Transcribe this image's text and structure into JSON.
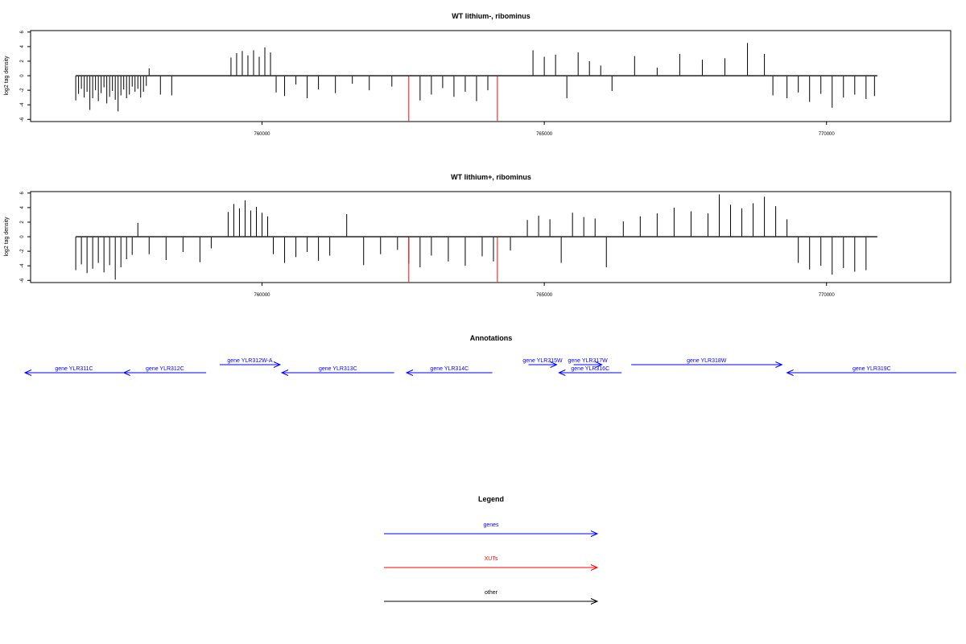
{
  "colors": {
    "signal": "#000000",
    "xut": "#ff0000",
    "gene": "#0000ff",
    "other": "#000000"
  },
  "chart_data": [
    {
      "type": "bar",
      "title": "WT lithium-, ribominus",
      "ylabel": "log2 tag density",
      "xlim": [
        755900,
        772200
      ],
      "ylim": [
        -6.3,
        6.2
      ],
      "xticks": [
        760000,
        765000,
        770000
      ],
      "xtick_labels": [
        "760000",
        "765000",
        "770000"
      ],
      "yticks": [
        -6,
        -4,
        -2,
        0,
        2,
        4,
        6
      ],
      "ytick_labels": [
        "-6",
        "-4",
        "-2",
        "0",
        "2",
        "4",
        "6"
      ],
      "data_range": [
        756700,
        770900
      ],
      "series": [
        {
          "color_key": "signal",
          "x": [
            756700,
            756750,
            756800,
            756850,
            756900,
            756950,
            757000,
            757050,
            757100,
            757150,
            757200,
            757250,
            757300,
            757350,
            757400,
            757450,
            757500,
            757550,
            757600,
            757650,
            757700,
            757750,
            757800,
            757850,
            757900,
            757950,
            758000,
            758200,
            758400,
            759450,
            759550,
            759650,
            759750,
            759850,
            759950,
            760050,
            760150,
            760250,
            760400,
            760600,
            760800,
            761000,
            761300,
            761600,
            761900,
            762300,
            762800,
            763000,
            763200,
            763400,
            763600,
            763800,
            764000,
            764800,
            765000,
            765200,
            765400,
            765600,
            765800,
            766000,
            766200,
            766600,
            767000,
            767400,
            767800,
            768200,
            768600,
            768900,
            769050,
            769300,
            769500,
            769700,
            769900,
            770100,
            770300,
            770500,
            770700,
            770850
          ],
          "values": [
            -3.4,
            -2.5,
            -1.8,
            -3.0,
            -2.2,
            -4.7,
            -3.1,
            -2.0,
            -3.5,
            -2.4,
            -1.6,
            -3.8,
            -2.9,
            -2.1,
            -3.3,
            -4.9,
            -2.7,
            -1.9,
            -3.1,
            -2.6,
            -1.5,
            -2.2,
            -1.8,
            -3.0,
            -2.2,
            -1.4,
            1.0,
            -2.6,
            -2.7,
            2.5,
            3.1,
            3.4,
            2.8,
            3.5,
            2.6,
            3.9,
            3.2,
            -2.3,
            -2.8,
            -1.2,
            -3.1,
            -1.9,
            -2.4,
            -1.1,
            -2.0,
            -1.5,
            -3.4,
            -2.6,
            -1.7,
            -2.9,
            -2.2,
            -3.5,
            -2.0,
            3.5,
            2.6,
            2.9,
            -3.1,
            3.2,
            2.0,
            1.4,
            -2.1,
            2.7,
            1.1,
            3.0,
            2.2,
            2.4,
            4.5,
            3.0,
            -2.7,
            -3.1,
            -2.3,
            -3.6,
            -2.5,
            -4.4,
            -3.0,
            -2.6,
            -3.2,
            -2.8
          ]
        },
        {
          "color_key": "xut",
          "x": [
            762600,
            764170
          ],
          "values": [
            -6.2,
            -6.2
          ]
        }
      ]
    },
    {
      "type": "bar",
      "title": "WT lithium+, ribominus",
      "ylabel": "log2 tag density",
      "xlim": [
        755900,
        772200
      ],
      "ylim": [
        -6.3,
        6.2
      ],
      "xticks": [
        760000,
        765000,
        770000
      ],
      "xtick_labels": [
        "760000",
        "765000",
        "770000"
      ],
      "yticks": [
        -6,
        -4,
        -2,
        0,
        2,
        4,
        6
      ],
      "ytick_labels": [
        "-6",
        "-4",
        "-2",
        "0",
        "2",
        "4",
        "6"
      ],
      "data_range": [
        756700,
        770900
      ],
      "series": [
        {
          "color_key": "signal",
          "x": [
            756700,
            756800,
            756900,
            757000,
            757100,
            757200,
            757300,
            757400,
            757500,
            757600,
            757700,
            757800,
            758000,
            758300,
            758600,
            758900,
            759100,
            759400,
            759500,
            759600,
            759700,
            759800,
            759900,
            760000,
            760100,
            760200,
            760400,
            760600,
            760800,
            761000,
            761200,
            761500,
            761800,
            762100,
            762400,
            762600,
            762800,
            763000,
            763300,
            763600,
            763900,
            764100,
            764400,
            764700,
            764900,
            765100,
            765300,
            765500,
            765700,
            765900,
            766100,
            766400,
            766700,
            767000,
            767300,
            767600,
            767900,
            768100,
            768300,
            768500,
            768700,
            768900,
            769100,
            769300,
            769500,
            769700,
            769900,
            770100,
            770300,
            770500,
            770700
          ],
          "values": [
            -4.6,
            -3.8,
            -5.0,
            -4.4,
            -3.6,
            -4.9,
            -3.9,
            -5.9,
            -4.2,
            -3.1,
            -2.5,
            1.9,
            -2.4,
            -3.2,
            -2.1,
            -3.5,
            -1.6,
            3.4,
            4.5,
            3.9,
            5.0,
            3.6,
            4.1,
            3.3,
            2.8,
            -2.4,
            -3.6,
            -2.8,
            -2.1,
            -3.3,
            -2.6,
            3.1,
            -3.9,
            -2.4,
            -1.8,
            -3.7,
            -4.2,
            -2.6,
            -3.4,
            -4.0,
            -2.7,
            -3.4,
            -1.9,
            2.3,
            2.9,
            2.4,
            -3.6,
            3.3,
            2.7,
            2.5,
            -4.2,
            2.1,
            2.8,
            3.2,
            4.0,
            3.5,
            3.2,
            5.8,
            4.4,
            3.9,
            4.6,
            5.5,
            4.2,
            2.4,
            -3.6,
            -4.5,
            -4.0,
            -5.2,
            -4.3,
            -4.8,
            -4.6
          ]
        },
        {
          "color_key": "xut",
          "x": [
            762600,
            764170
          ],
          "values": [
            -6.2,
            -6.2
          ]
        }
      ]
    }
  ],
  "annotations": {
    "title": "Annotations",
    "xlim": [
      755900,
      772200
    ],
    "genes": [
      {
        "label": "gene YLR311C",
        "start": 755800,
        "end": 757540,
        "strand": "-",
        "row": 0
      },
      {
        "label": "gene YLR312C",
        "start": 757550,
        "end": 759010,
        "strand": "-",
        "row": 0
      },
      {
        "label": "gene YLR312W-A",
        "start": 759250,
        "end": 760320,
        "strand": "+",
        "row": 1
      },
      {
        "label": "gene YLR313C",
        "start": 760350,
        "end": 762340,
        "strand": "-",
        "row": 0
      },
      {
        "label": "gene YLR314C",
        "start": 762560,
        "end": 764080,
        "strand": "-",
        "row": 0
      },
      {
        "label": "gene YLR315W",
        "start": 764720,
        "end": 765220,
        "strand": "+",
        "row": 1
      },
      {
        "label": "gene YLR316C",
        "start": 765260,
        "end": 766370,
        "strand": "-",
        "row": 0
      },
      {
        "label": "gene YLR317W",
        "start": 765520,
        "end": 766020,
        "strand": "+",
        "row": 1
      },
      {
        "label": "gene YLR318W",
        "start": 766540,
        "end": 769210,
        "strand": "+",
        "row": 1
      },
      {
        "label": "gene YLR319C",
        "start": 769300,
        "end": 772300,
        "strand": "-",
        "row": 0
      }
    ]
  },
  "legend": {
    "title": "Legend",
    "items": [
      {
        "label": "genes",
        "color_key": "gene"
      },
      {
        "label": "XUTs",
        "color_key": "xut"
      },
      {
        "label": "other",
        "color_key": "other"
      }
    ]
  }
}
